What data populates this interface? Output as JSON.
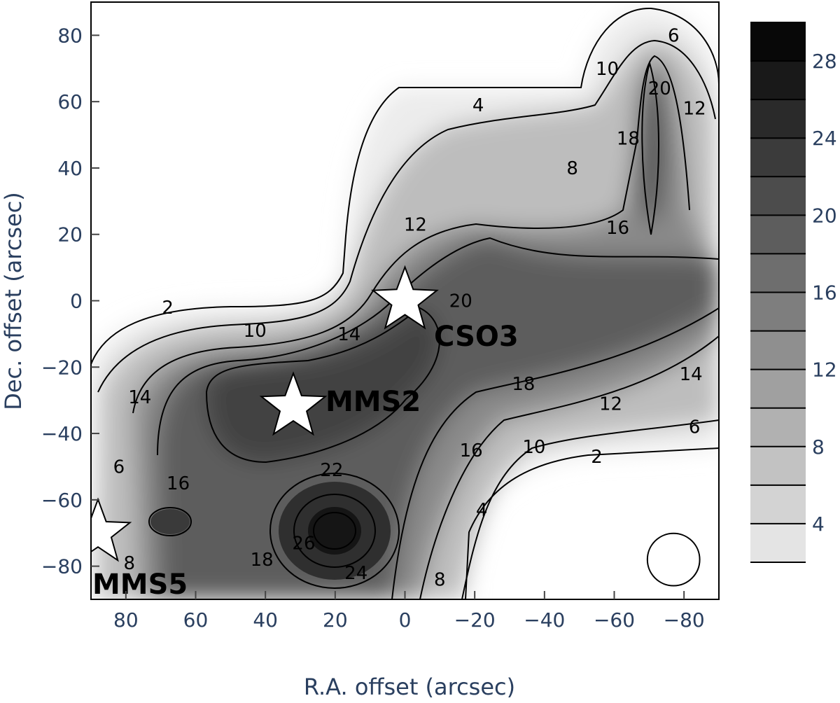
{
  "chart_data": {
    "type": "contour",
    "xlabel": "R.A. offset (arcsec)",
    "ylabel": "Dec. offset (arcsec)",
    "xlim": [
      90,
      -90
    ],
    "ylim": [
      -90,
      90
    ],
    "x_reversed": true,
    "x_ticks": [
      80,
      60,
      40,
      20,
      0,
      -20,
      -40,
      -60,
      -80
    ],
    "x_tick_labels": [
      "80",
      "60",
      "40",
      "20",
      "0",
      "−20",
      "−40",
      "−60",
      "−80"
    ],
    "y_ticks": [
      80,
      60,
      40,
      20,
      0,
      -20,
      -40,
      -60,
      -80
    ],
    "y_tick_labels": [
      "80",
      "60",
      "40",
      "20",
      "0",
      "−20",
      "−40",
      "−60",
      "−80"
    ],
    "contour_levels": [
      2,
      4,
      6,
      8,
      10,
      12,
      14,
      16,
      18,
      20,
      22,
      24,
      26,
      28,
      30
    ],
    "colorscale": "Greys",
    "colorbar": {
      "range": [
        2,
        30
      ],
      "ticks": [
        4,
        8,
        12,
        16,
        20,
        24,
        28
      ],
      "tick_labels": [
        "4",
        "8",
        "12",
        "16",
        "20",
        "24",
        "28"
      ]
    },
    "contour_labels": [
      {
        "text": "2",
        "x": 68,
        "y": -2
      },
      {
        "text": "10",
        "x": 43,
        "y": -9
      },
      {
        "text": "14",
        "x": 16,
        "y": -10
      },
      {
        "text": "20",
        "x": -16,
        "y": 0
      },
      {
        "text": "12",
        "x": -3,
        "y": 23
      },
      {
        "text": "4",
        "x": -21,
        "y": 59
      },
      {
        "text": "8",
        "x": -48,
        "y": 40
      },
      {
        "text": "10",
        "x": -58,
        "y": 70
      },
      {
        "text": "6",
        "x": -77,
        "y": 80
      },
      {
        "text": "20",
        "x": -73,
        "y": 64
      },
      {
        "text": "18",
        "x": -64,
        "y": 49
      },
      {
        "text": "12",
        "x": -83,
        "y": 58
      },
      {
        "text": "16",
        "x": -61,
        "y": 22
      },
      {
        "text": "18",
        "x": -34,
        "y": -25
      },
      {
        "text": "12",
        "x": -59,
        "y": -31
      },
      {
        "text": "14",
        "x": -82,
        "y": -22
      },
      {
        "text": "6",
        "x": -83,
        "y": -38
      },
      {
        "text": "10",
        "x": -37,
        "y": -44
      },
      {
        "text": "16",
        "x": -19,
        "y": -45
      },
      {
        "text": "2",
        "x": -55,
        "y": -47
      },
      {
        "text": "4",
        "x": -22,
        "y": -63
      },
      {
        "text": "22",
        "x": 21,
        "y": -51
      },
      {
        "text": "26",
        "x": 29,
        "y": -73
      },
      {
        "text": "24",
        "x": 14,
        "y": -82
      },
      {
        "text": "18",
        "x": 41,
        "y": -78
      },
      {
        "text": "8",
        "x": -10,
        "y": -84
      },
      {
        "text": "14",
        "x": 76,
        "y": -29
      },
      {
        "text": "16",
        "x": 65,
        "y": -55
      },
      {
        "text": "6",
        "x": 82,
        "y": -50
      },
      {
        "text": "8",
        "x": 79,
        "y": -79
      }
    ],
    "sources": [
      {
        "name": "CSO3",
        "x": 0,
        "y": 0
      },
      {
        "name": "MMS2",
        "x": 32,
        "y": -32
      },
      {
        "name": "MMS5",
        "x": 88,
        "y": -70
      }
    ],
    "beam": {
      "x": -77,
      "y": -78,
      "diameter_arcsec": 15
    }
  }
}
